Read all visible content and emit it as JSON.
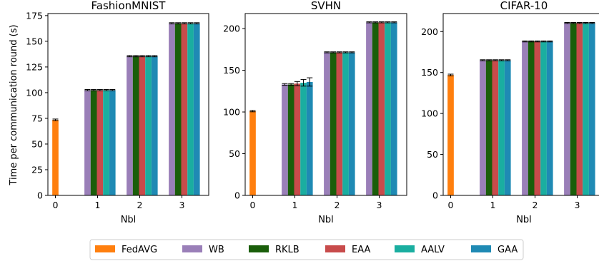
{
  "figure": {
    "ylabel": "Time per communication round (s)"
  },
  "legend": {
    "placement": "bottom-center",
    "entries": [
      {
        "name": "FedAVG",
        "color": "#ff7f0e"
      },
      {
        "name": "WB",
        "color": "#9a7fb8"
      },
      {
        "name": "RKLB",
        "color": "#1a5e0a"
      },
      {
        "name": "EAA",
        "color": "#c84b4b"
      },
      {
        "name": "AALV",
        "color": "#1aaea0"
      },
      {
        "name": "GAA",
        "color": "#1f8ab4"
      }
    ]
  },
  "chart_data": [
    {
      "type": "bar",
      "title": "FashionMNIST",
      "xlabel": "Nbl",
      "ylabel": "Time per communication round (s)",
      "categories": [
        "0",
        "1",
        "2",
        "3"
      ],
      "ylim": [
        0,
        177
      ],
      "yticks": [
        0,
        25,
        50,
        75,
        100,
        125,
        150,
        175
      ],
      "series": [
        {
          "name": "FedAVG",
          "color": "#ff7f0e",
          "values": [
            73.5,
            null,
            null,
            null
          ],
          "errors": [
            0.8,
            null,
            null,
            null
          ]
        },
        {
          "name": "WB",
          "color": "#9a7fb8",
          "values": [
            null,
            102.5,
            135.5,
            167.5
          ],
          "errors": [
            null,
            0.6,
            0.6,
            0.6
          ]
        },
        {
          "name": "RKLB",
          "color": "#1a5e0a",
          "values": [
            null,
            102.5,
            135.5,
            167.5
          ],
          "errors": [
            null,
            0.6,
            0.6,
            0.6
          ]
        },
        {
          "name": "EAA",
          "color": "#c84b4b",
          "values": [
            null,
            102.5,
            135.5,
            167.5
          ],
          "errors": [
            null,
            0.6,
            0.6,
            0.6
          ]
        },
        {
          "name": "AALV",
          "color": "#1aaea0",
          "values": [
            null,
            102.5,
            135.5,
            167.5
          ],
          "errors": [
            null,
            0.6,
            0.6,
            0.6
          ]
        },
        {
          "name": "GAA",
          "color": "#1f8ab4",
          "values": [
            null,
            102.5,
            135.5,
            167.5
          ],
          "errors": [
            null,
            0.6,
            0.6,
            0.6
          ]
        }
      ]
    },
    {
      "type": "bar",
      "title": "SVHN",
      "xlabel": "Nbl",
      "categories": [
        "0",
        "1",
        "2",
        "3"
      ],
      "ylim": [
        0,
        218
      ],
      "yticks": [
        0,
        50,
        100,
        150,
        200
      ],
      "series": [
        {
          "name": "FedAVG",
          "color": "#ff7f0e",
          "values": [
            101,
            null,
            null,
            null
          ],
          "errors": [
            0.8,
            null,
            null,
            null
          ]
        },
        {
          "name": "WB",
          "color": "#9a7fb8",
          "values": [
            null,
            133,
            171.5,
            207.5
          ],
          "errors": [
            null,
            1,
            0.6,
            0.6
          ]
        },
        {
          "name": "RKLB",
          "color": "#1a5e0a",
          "values": [
            null,
            133,
            171.5,
            207.5
          ],
          "errors": [
            null,
            1,
            0.6,
            0.6
          ]
        },
        {
          "name": "EAA",
          "color": "#c84b4b",
          "values": [
            null,
            134,
            171.5,
            207.5
          ],
          "errors": [
            null,
            2.5,
            0.6,
            0.6
          ]
        },
        {
          "name": "AALV",
          "color": "#1aaea0",
          "values": [
            null,
            135,
            171.5,
            207.5
          ],
          "errors": [
            null,
            4,
            0.6,
            0.6
          ]
        },
        {
          "name": "GAA",
          "color": "#1f8ab4",
          "values": [
            null,
            136,
            171.5,
            207.5
          ],
          "errors": [
            null,
            5,
            0.6,
            0.6
          ]
        }
      ]
    },
    {
      "type": "bar",
      "title": "CIFAR-10",
      "xlabel": "Nbl",
      "categories": [
        "0",
        "1",
        "2",
        "3"
      ],
      "ylim": [
        0,
        222
      ],
      "yticks": [
        0,
        50,
        100,
        150,
        200
      ],
      "series": [
        {
          "name": "FedAVG",
          "color": "#ff7f0e",
          "values": [
            147,
            null,
            null,
            null
          ],
          "errors": [
            1,
            null,
            null,
            null
          ]
        },
        {
          "name": "WB",
          "color": "#9a7fb8",
          "values": [
            null,
            165,
            188,
            210.5
          ],
          "errors": [
            null,
            0.6,
            0.6,
            0.6
          ]
        },
        {
          "name": "RKLB",
          "color": "#1a5e0a",
          "values": [
            null,
            165,
            188,
            210.5
          ],
          "errors": [
            null,
            0.6,
            0.6,
            0.6
          ]
        },
        {
          "name": "EAA",
          "color": "#c84b4b",
          "values": [
            null,
            165,
            188,
            210.5
          ],
          "errors": [
            null,
            0.6,
            0.6,
            0.6
          ]
        },
        {
          "name": "AALV",
          "color": "#1aaea0",
          "values": [
            null,
            165,
            188,
            210.5
          ],
          "errors": [
            null,
            0.6,
            0.6,
            0.6
          ]
        },
        {
          "name": "GAA",
          "color": "#1f8ab4",
          "values": [
            null,
            165,
            188,
            210.5
          ],
          "errors": [
            null,
            0.6,
            0.6,
            0.6
          ]
        }
      ]
    }
  ]
}
